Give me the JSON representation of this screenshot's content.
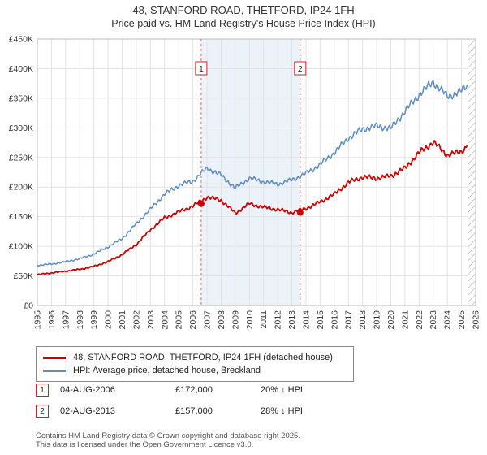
{
  "title": "48, STANFORD ROAD, THETFORD, IP24 1FH",
  "subtitle": "Price paid vs. HM Land Registry's House Price Index (HPI)",
  "chart_data": {
    "type": "line",
    "x_range": [
      1995,
      2026
    ],
    "ylim": [
      0,
      450000
    ],
    "y_tick_step": 50000,
    "y_ticks": [
      "£0",
      "£50K",
      "£100K",
      "£150K",
      "£200K",
      "£250K",
      "£300K",
      "£350K",
      "£400K",
      "£450K"
    ],
    "x": [
      1995,
      1996,
      1997,
      1998,
      1999,
      2000,
      2001,
      2002,
      2003,
      2004,
      2005,
      2006,
      2007,
      2008,
      2009,
      2010,
      2011,
      2012,
      2013,
      2014,
      2015,
      2016,
      2017,
      2018,
      2019,
      2020,
      2021,
      2022,
      2023,
      2024,
      2025,
      2025.4
    ],
    "series": [
      {
        "name": "48, STANFORD ROAD, THETFORD, IP24 1FH (detached house)",
        "color": "#cc0000",
        "values": [
          52000,
          55000,
          58000,
          61000,
          66000,
          74000,
          86000,
          103000,
          128000,
          148000,
          158000,
          168000,
          183000,
          178000,
          156000,
          172000,
          166000,
          162000,
          157000,
          164000,
          175000,
          188000,
          208000,
          217000,
          215000,
          219000,
          232000,
          258000,
          276000,
          254000,
          260000,
          270000
        ]
      },
      {
        "name": "HPI: Average price, detached house, Breckland",
        "color": "#5b8cc4",
        "values": [
          68000,
          70000,
          74000,
          79000,
          87000,
          99000,
          113000,
          138000,
          163000,
          188000,
          203000,
          210000,
          232000,
          220000,
          198000,
          215000,
          209000,
          205000,
          212000,
          223000,
          238000,
          258000,
          283000,
          298000,
          303000,
          299000,
          328000,
          356000,
          378000,
          353000,
          362000,
          372000
        ]
      }
    ],
    "sales": [
      {
        "label": "1",
        "x": 2006.59,
        "date": "04-AUG-2006",
        "price": 172000,
        "price_label": "£172,000",
        "hpi_diff": "20% ↓ HPI"
      },
      {
        "label": "2",
        "x": 2013.59,
        "date": "02-AUG-2013",
        "price": 157000,
        "price_label": "£157,000",
        "hpi_diff": "28% ↓ HPI"
      }
    ],
    "band_color": "#dde8f6",
    "hatch_start": 2025.45,
    "grid": true,
    "legend_position": "bottom"
  },
  "footer": {
    "line1": "Contains HM Land Registry data © Crown copyright and database right 2025.",
    "line2": "This data is licensed under the Open Government Licence v3.0."
  }
}
